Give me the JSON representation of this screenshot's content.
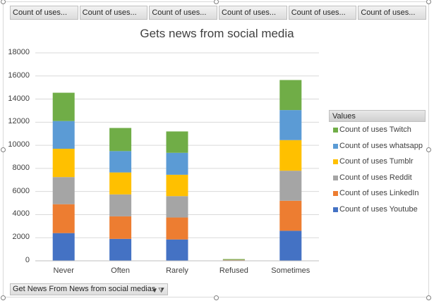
{
  "field_buttons": [
    "Count of uses...",
    "Count of uses...",
    "Count of uses...",
    "Count of uses...",
    "Count of uses...",
    "Count of uses..."
  ],
  "legend": {
    "title": "Values"
  },
  "filter": {
    "label": "Get News From News from social medias",
    "icon": "filter-dropdown-icon"
  },
  "chart_data": {
    "type": "bar",
    "stacked": true,
    "title": "Gets news from social media",
    "xlabel": "",
    "ylabel": "",
    "ylim": [
      0,
      18000
    ],
    "yticks": [
      0,
      2000,
      4000,
      6000,
      8000,
      10000,
      12000,
      14000,
      16000,
      18000
    ],
    "grid": true,
    "legend_position": "right",
    "categories": [
      "Never",
      "Often",
      "Rarely",
      "Refused",
      "Sometimes"
    ],
    "series": [
      {
        "name": "Count of uses Youtube",
        "color": "#4472c4",
        "values": [
          2400,
          1900,
          1850,
          40,
          2600
        ]
      },
      {
        "name": "Count of uses LinkedIn",
        "color": "#ed7d31",
        "values": [
          2500,
          1950,
          1900,
          30,
          2600
        ]
      },
      {
        "name": "Count of uses Reddit",
        "color": "#a5a5a5",
        "values": [
          2350,
          1900,
          1850,
          20,
          2600
        ]
      },
      {
        "name": "Count of uses Tumblr",
        "color": "#ffc000",
        "values": [
          2450,
          1900,
          1850,
          20,
          2650
        ]
      },
      {
        "name": "Count of uses whatsapp",
        "color": "#5b9bd5",
        "values": [
          2400,
          1850,
          1900,
          20,
          2600
        ]
      },
      {
        "name": "Count of uses Twitch",
        "color": "#70ad47",
        "values": [
          2450,
          2000,
          1850,
          20,
          2600
        ]
      }
    ]
  }
}
